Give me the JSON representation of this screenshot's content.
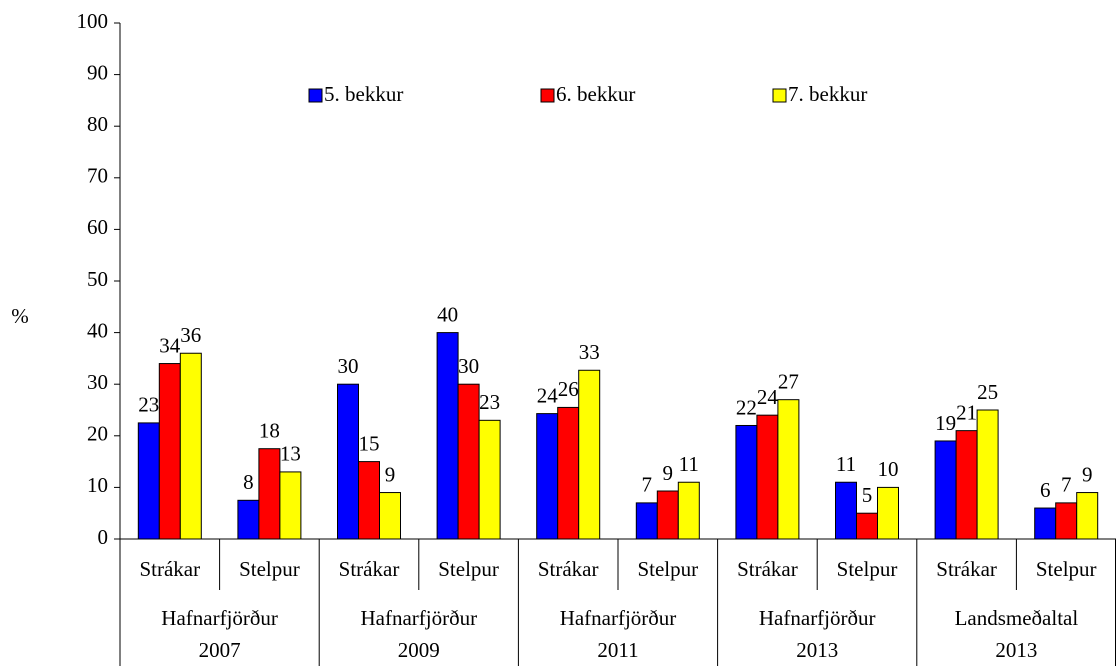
{
  "chart_data": {
    "type": "bar",
    "y_label": "%",
    "categories": [
      "Strákar",
      "Stelpur",
      "Strákar",
      "Stelpur",
      "Strákar",
      "Stelpur",
      "Strákar",
      "Stelpur",
      "Strákar",
      "Stelpur"
    ],
    "groups": [
      [
        "Hafnarfjörður",
        "2007"
      ],
      [
        "Hafnarfjörður",
        "2009"
      ],
      [
        "Hafnarfjörður",
        "2011"
      ],
      [
        "Hafnarfjörður",
        "2013"
      ],
      [
        "Landsmeðaltal",
        "2013"
      ]
    ],
    "series": [
      {
        "name": "5. bekkur",
        "color": "#0000ff",
        "values": [
          22.5,
          7.5,
          30,
          40,
          24.3,
          7,
          22,
          11,
          19,
          6
        ],
        "value_labels": [
          "23",
          "8",
          "30",
          "40",
          "24",
          "7",
          "22",
          "11",
          "19",
          "6"
        ]
      },
      {
        "name": "6. bekkur",
        "color": "#ff0000",
        "values": [
          34,
          17.5,
          15,
          30,
          25.5,
          9.3,
          24,
          5,
          21,
          7
        ],
        "value_labels": [
          "34",
          "18",
          "15",
          "30",
          "26",
          "9",
          "24",
          "5",
          "21",
          "7"
        ]
      },
      {
        "name": "7. bekkur",
        "color": "#ffff00",
        "values": [
          36,
          13,
          9,
          23,
          32.7,
          11,
          27,
          10,
          25,
          9
        ],
        "value_labels": [
          "36",
          "13",
          "9",
          "23",
          "33",
          "11",
          "27",
          "10",
          "25",
          "9"
        ]
      }
    ],
    "ylim": [
      0,
      100
    ],
    "yticks": [
      0,
      10,
      20,
      30,
      40,
      50,
      60,
      70,
      80,
      90,
      100
    ],
    "legend": "top"
  }
}
